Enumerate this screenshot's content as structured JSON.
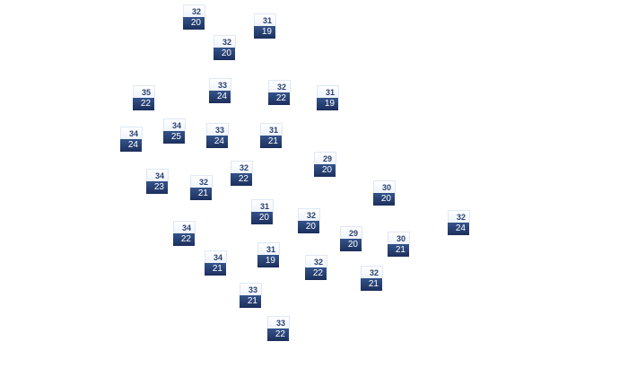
{
  "markers": [
    {
      "high": "32",
      "low": "20"
    },
    {
      "high": "31",
      "low": "19"
    },
    {
      "high": "32",
      "low": "20"
    },
    {
      "high": "33",
      "low": "24"
    },
    {
      "high": "35",
      "low": "22"
    },
    {
      "high": "32",
      "low": "22"
    },
    {
      "high": "31",
      "low": "19"
    },
    {
      "high": "34",
      "low": "25"
    },
    {
      "high": "34",
      "low": "24"
    },
    {
      "high": "33",
      "low": "24"
    },
    {
      "high": "31",
      "low": "21"
    },
    {
      "high": "29",
      "low": "20"
    },
    {
      "high": "32",
      "low": "22"
    },
    {
      "high": "34",
      "low": "23"
    },
    {
      "high": "32",
      "low": "21"
    },
    {
      "high": "30",
      "low": "20"
    },
    {
      "high": "31",
      "low": "20"
    },
    {
      "high": "32",
      "low": "20"
    },
    {
      "high": "32",
      "low": "24"
    },
    {
      "high": "34",
      "low": "22"
    },
    {
      "high": "29",
      "low": "20"
    },
    {
      "high": "30",
      "low": "21"
    },
    {
      "high": "31",
      "low": "19"
    },
    {
      "high": "34",
      "low": "21"
    },
    {
      "high": "32",
      "low": "22"
    },
    {
      "high": "32",
      "low": "21"
    },
    {
      "high": "33",
      "low": "21"
    },
    {
      "high": "33",
      "low": "22"
    }
  ],
  "colors": {
    "high_text": "#2a3f6e",
    "low_bg": "#1c2f5c",
    "low_text": "#ffffff"
  }
}
